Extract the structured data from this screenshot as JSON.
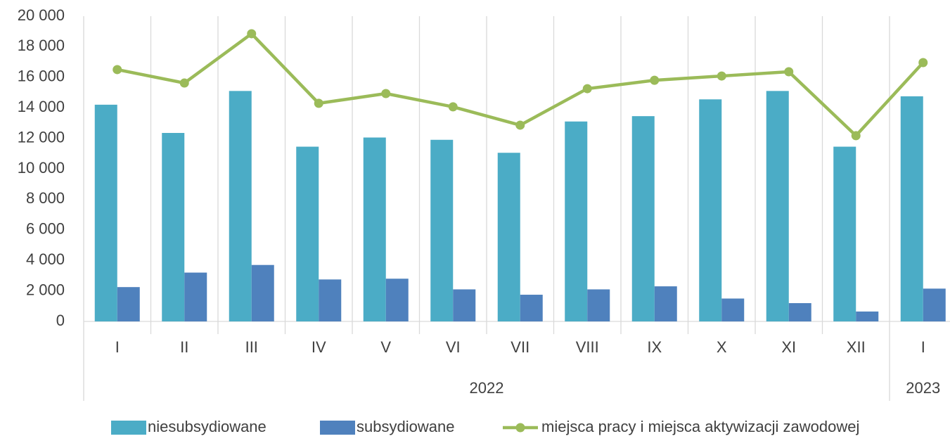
{
  "chart_data": {
    "type": "bar",
    "category_groups": [
      {
        "name": "2022",
        "categories": [
          "I",
          "II",
          "III",
          "IV",
          "V",
          "VI",
          "VII",
          "VIII",
          "IX",
          "X",
          "XI",
          "XII"
        ]
      },
      {
        "name": "2023",
        "categories": [
          "I"
        ]
      }
    ],
    "series": [
      {
        "name": "niesubsydiowane",
        "type": "bar",
        "color": "#4bacc6",
        "values": [
          14200,
          12350,
          15100,
          11450,
          12050,
          11900,
          11050,
          13100,
          13450,
          14550,
          15100,
          11450,
          14750
        ]
      },
      {
        "name": "subsydiowane",
        "type": "bar",
        "color": "#4f81bd",
        "values": [
          2250,
          3200,
          3700,
          2750,
          2800,
          2100,
          1750,
          2100,
          2300,
          1500,
          1200,
          650,
          2150
        ]
      },
      {
        "name": "miejsca pracy i miejsca aktywizacji zawodowej",
        "type": "line",
        "color": "#9bbb59",
        "values": [
          16500,
          15620,
          18850,
          14290,
          14930,
          14060,
          12860,
          15250,
          15800,
          16080,
          16360,
          12170,
          16960
        ]
      }
    ],
    "ylim": [
      0,
      20000
    ],
    "yticks": [
      0,
      {
        "value": 2000,
        "label": "2 000"
      },
      {
        "value": 4000,
        "label": "4 000"
      },
      {
        "value": 6000,
        "label": "6 000"
      },
      {
        "value": 8000,
        "label": "8 000"
      },
      {
        "value": 10000,
        "label": "10 000"
      },
      {
        "value": 12000,
        "label": "12 000"
      },
      {
        "value": 14000,
        "label": "14 000"
      },
      {
        "value": 16000,
        "label": "16 000"
      },
      {
        "value": 18000,
        "label": "18 000"
      },
      {
        "value": 20000,
        "label": "20 000"
      }
    ],
    "legend": "bottom"
  }
}
